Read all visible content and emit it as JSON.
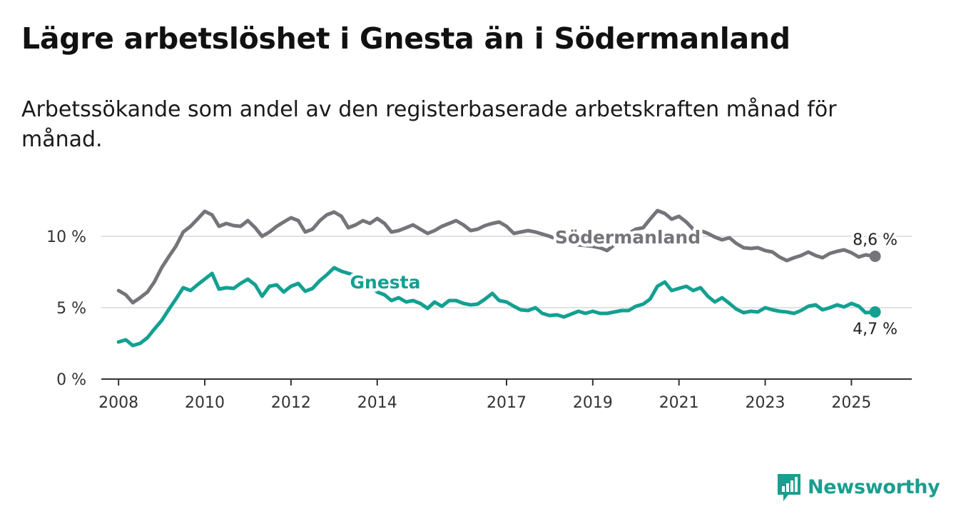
{
  "title": "Lägre arbetslöshet i Gnesta än i Södermanland",
  "subtitle": "Arbetssökande som andel av den registerbaserade arbetskraften månad för månad.",
  "brand": {
    "name": "Newsworthy",
    "icon": "bar-chart-logo-icon"
  },
  "colors": {
    "gnesta": "#13a091",
    "sodermanland": "#76737a",
    "gridline": "#d9d9d9",
    "axis": "#333333",
    "brand": "#1a9e8f"
  },
  "chart_data": {
    "type": "line",
    "xlabel": "",
    "ylabel": "",
    "xlim": [
      2007.6,
      2026.4
    ],
    "ylim": [
      0,
      13
    ],
    "x_ticks": [
      2008,
      2010,
      2012,
      2014,
      2017,
      2019,
      2021,
      2023,
      2025
    ],
    "y_ticks": [
      {
        "value": 0,
        "label": "0 %"
      },
      {
        "value": 5,
        "label": "5 %"
      },
      {
        "value": 10,
        "label": "10 %"
      }
    ],
    "grid": "horizontal",
    "legend": "inline labels",
    "series": [
      {
        "name": "Södermanland",
        "color": "#76737a",
        "end_label": "8,6 %",
        "points": [
          [
            2008.0,
            6.2
          ],
          [
            2008.17,
            5.9
          ],
          [
            2008.33,
            5.35
          ],
          [
            2008.5,
            5.7
          ],
          [
            2008.67,
            6.1
          ],
          [
            2008.83,
            6.8
          ],
          [
            2009.0,
            7.8
          ],
          [
            2009.17,
            8.6
          ],
          [
            2009.33,
            9.3
          ],
          [
            2009.5,
            10.3
          ],
          [
            2009.67,
            10.7
          ],
          [
            2009.83,
            11.2
          ],
          [
            2010.0,
            11.75
          ],
          [
            2010.17,
            11.5
          ],
          [
            2010.33,
            10.7
          ],
          [
            2010.5,
            10.9
          ],
          [
            2010.67,
            10.75
          ],
          [
            2010.83,
            10.7
          ],
          [
            2011.0,
            11.1
          ],
          [
            2011.17,
            10.6
          ],
          [
            2011.33,
            10.0
          ],
          [
            2011.5,
            10.3
          ],
          [
            2011.67,
            10.7
          ],
          [
            2011.83,
            11.0
          ],
          [
            2012.0,
            11.3
          ],
          [
            2012.17,
            11.1
          ],
          [
            2012.33,
            10.3
          ],
          [
            2012.5,
            10.5
          ],
          [
            2012.67,
            11.1
          ],
          [
            2012.83,
            11.5
          ],
          [
            2013.0,
            11.7
          ],
          [
            2013.17,
            11.4
          ],
          [
            2013.33,
            10.6
          ],
          [
            2013.5,
            10.8
          ],
          [
            2013.67,
            11.1
          ],
          [
            2013.83,
            10.9
          ],
          [
            2014.0,
            11.25
          ],
          [
            2014.17,
            10.9
          ],
          [
            2014.33,
            10.3
          ],
          [
            2014.5,
            10.4
          ],
          [
            2014.67,
            10.6
          ],
          [
            2014.83,
            10.8
          ],
          [
            2015.0,
            10.5
          ],
          [
            2015.17,
            10.2
          ],
          [
            2015.33,
            10.4
          ],
          [
            2015.5,
            10.7
          ],
          [
            2015.67,
            10.9
          ],
          [
            2015.83,
            11.1
          ],
          [
            2016.0,
            10.8
          ],
          [
            2016.17,
            10.4
          ],
          [
            2016.33,
            10.5
          ],
          [
            2016.5,
            10.75
          ],
          [
            2016.67,
            10.9
          ],
          [
            2016.83,
            11.0
          ],
          [
            2017.0,
            10.7
          ],
          [
            2017.17,
            10.2
          ],
          [
            2017.33,
            10.3
          ],
          [
            2017.5,
            10.4
          ],
          [
            2017.67,
            10.3
          ],
          [
            2018.0,
            10.0
          ],
          [
            2018.33,
            9.6
          ],
          [
            2018.67,
            9.4
          ],
          [
            2019.0,
            9.3
          ],
          [
            2019.17,
            9.2
          ],
          [
            2019.33,
            9.0
          ],
          [
            2019.5,
            9.4
          ],
          [
            2019.67,
            9.9
          ],
          [
            2019.83,
            10.2
          ],
          [
            2020.0,
            10.5
          ],
          [
            2020.17,
            10.6
          ],
          [
            2020.33,
            11.2
          ],
          [
            2020.5,
            11.8
          ],
          [
            2020.67,
            11.6
          ],
          [
            2020.83,
            11.2
          ],
          [
            2021.0,
            11.4
          ],
          [
            2021.17,
            11.0
          ],
          [
            2021.33,
            10.5
          ],
          [
            2021.5,
            10.4
          ],
          [
            2021.67,
            10.2
          ],
          [
            2021.83,
            9.95
          ],
          [
            2022.0,
            9.75
          ],
          [
            2022.17,
            9.9
          ],
          [
            2022.33,
            9.5
          ],
          [
            2022.5,
            9.2
          ],
          [
            2022.67,
            9.15
          ],
          [
            2022.83,
            9.2
          ],
          [
            2023.0,
            9.0
          ],
          [
            2023.17,
            8.9
          ],
          [
            2023.33,
            8.55
          ],
          [
            2023.5,
            8.3
          ],
          [
            2023.67,
            8.5
          ],
          [
            2023.83,
            8.65
          ],
          [
            2024.0,
            8.9
          ],
          [
            2024.17,
            8.65
          ],
          [
            2024.33,
            8.5
          ],
          [
            2024.5,
            8.8
          ],
          [
            2024.67,
            8.95
          ],
          [
            2024.83,
            9.05
          ],
          [
            2025.0,
            8.85
          ],
          [
            2025.17,
            8.55
          ],
          [
            2025.33,
            8.7
          ],
          [
            2025.55,
            8.6
          ]
        ]
      },
      {
        "name": "Gnesta",
        "color": "#13a091",
        "end_label": "4,7 %",
        "points": [
          [
            2008.0,
            2.6
          ],
          [
            2008.17,
            2.75
          ],
          [
            2008.33,
            2.35
          ],
          [
            2008.5,
            2.5
          ],
          [
            2008.67,
            2.9
          ],
          [
            2008.83,
            3.5
          ],
          [
            2009.0,
            4.1
          ],
          [
            2009.17,
            4.9
          ],
          [
            2009.33,
            5.6
          ],
          [
            2009.5,
            6.4
          ],
          [
            2009.67,
            6.2
          ],
          [
            2009.83,
            6.6
          ],
          [
            2010.0,
            7.0
          ],
          [
            2010.17,
            7.4
          ],
          [
            2010.33,
            6.3
          ],
          [
            2010.5,
            6.4
          ],
          [
            2010.67,
            6.35
          ],
          [
            2010.83,
            6.7
          ],
          [
            2011.0,
            7.0
          ],
          [
            2011.17,
            6.6
          ],
          [
            2011.33,
            5.8
          ],
          [
            2011.5,
            6.5
          ],
          [
            2011.67,
            6.6
          ],
          [
            2011.83,
            6.1
          ],
          [
            2012.0,
            6.5
          ],
          [
            2012.17,
            6.7
          ],
          [
            2012.33,
            6.15
          ],
          [
            2012.5,
            6.35
          ],
          [
            2012.67,
            6.9
          ],
          [
            2012.83,
            7.3
          ],
          [
            2013.0,
            7.8
          ],
          [
            2013.17,
            7.55
          ],
          [
            2013.5,
            7.25
          ],
          [
            2013.83,
            6.6
          ],
          [
            2014.0,
            6.1
          ],
          [
            2014.17,
            5.9
          ],
          [
            2014.33,
            5.5
          ],
          [
            2014.5,
            5.7
          ],
          [
            2014.67,
            5.4
          ],
          [
            2014.83,
            5.5
          ],
          [
            2015.0,
            5.3
          ],
          [
            2015.17,
            4.95
          ],
          [
            2015.33,
            5.4
          ],
          [
            2015.5,
            5.1
          ],
          [
            2015.67,
            5.5
          ],
          [
            2015.83,
            5.5
          ],
          [
            2016.0,
            5.3
          ],
          [
            2016.17,
            5.2
          ],
          [
            2016.33,
            5.25
          ],
          [
            2016.5,
            5.6
          ],
          [
            2016.67,
            6.0
          ],
          [
            2016.83,
            5.5
          ],
          [
            2017.0,
            5.4
          ],
          [
            2017.17,
            5.1
          ],
          [
            2017.33,
            4.85
          ],
          [
            2017.5,
            4.8
          ],
          [
            2017.67,
            5.0
          ],
          [
            2017.83,
            4.6
          ],
          [
            2018.0,
            4.45
          ],
          [
            2018.17,
            4.5
          ],
          [
            2018.33,
            4.35
          ],
          [
            2018.5,
            4.55
          ],
          [
            2018.67,
            4.75
          ],
          [
            2018.83,
            4.6
          ],
          [
            2019.0,
            4.75
          ],
          [
            2019.17,
            4.6
          ],
          [
            2019.33,
            4.6
          ],
          [
            2019.5,
            4.7
          ],
          [
            2019.67,
            4.8
          ],
          [
            2019.83,
            4.8
          ],
          [
            2020.0,
            5.1
          ],
          [
            2020.17,
            5.25
          ],
          [
            2020.33,
            5.6
          ],
          [
            2020.5,
            6.5
          ],
          [
            2020.67,
            6.8
          ],
          [
            2020.83,
            6.2
          ],
          [
            2021.0,
            6.35
          ],
          [
            2021.17,
            6.5
          ],
          [
            2021.33,
            6.2
          ],
          [
            2021.5,
            6.4
          ],
          [
            2021.67,
            5.8
          ],
          [
            2021.83,
            5.4
          ],
          [
            2022.0,
            5.7
          ],
          [
            2022.17,
            5.3
          ],
          [
            2022.33,
            4.9
          ],
          [
            2022.5,
            4.65
          ],
          [
            2022.67,
            4.75
          ],
          [
            2022.83,
            4.7
          ],
          [
            2023.0,
            5.0
          ],
          [
            2023.17,
            4.85
          ],
          [
            2023.33,
            4.75
          ],
          [
            2023.5,
            4.7
          ],
          [
            2023.67,
            4.6
          ],
          [
            2023.83,
            4.8
          ],
          [
            2024.0,
            5.1
          ],
          [
            2024.17,
            5.2
          ],
          [
            2024.33,
            4.85
          ],
          [
            2024.5,
            5.0
          ],
          [
            2024.67,
            5.2
          ],
          [
            2024.83,
            5.05
          ],
          [
            2025.0,
            5.3
          ],
          [
            2025.17,
            5.1
          ],
          [
            2025.33,
            4.65
          ],
          [
            2025.55,
            4.7
          ]
        ]
      }
    ]
  }
}
